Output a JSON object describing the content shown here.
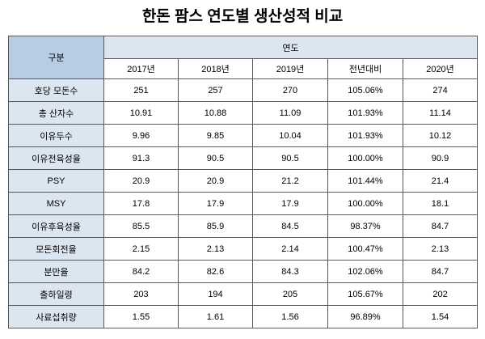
{
  "page_title": "한돈 팜스 연도별 생산성적 비교",
  "chart_data": {
    "type": "table",
    "title": "한돈 팜스 연도별 생산성적 비교",
    "corner_header": "구분",
    "group_header": "연도",
    "column_headers": [
      "2017년",
      "2018년",
      "2019년",
      "전년대비",
      "2020년"
    ],
    "rows": [
      {
        "label": "호당 모돈수",
        "values": [
          "251",
          "257",
          "270",
          "105.06%",
          "274"
        ]
      },
      {
        "label": "총 산자수",
        "values": [
          "10.91",
          "10.88",
          "11.09",
          "101.93%",
          "11.14"
        ]
      },
      {
        "label": "이유두수",
        "values": [
          "9.96",
          "9.85",
          "10.04",
          "101.93%",
          "10.12"
        ]
      },
      {
        "label": "이유전육성율",
        "values": [
          "91.3",
          "90.5",
          "90.5",
          "100.00%",
          "90.9"
        ]
      },
      {
        "label": "PSY",
        "values": [
          "20.9",
          "20.9",
          "21.2",
          "101.44%",
          "21.4"
        ]
      },
      {
        "label": "MSY",
        "values": [
          "17.8",
          "17.9",
          "17.9",
          "100.00%",
          "18.1"
        ]
      },
      {
        "label": "이유후육성율",
        "values": [
          "85.5",
          "85.9",
          "84.5",
          "98.37%",
          "84.7"
        ]
      },
      {
        "label": "모돈회전율",
        "values": [
          "2.15",
          "2.13",
          "2.14",
          "100.47%",
          "2.13"
        ]
      },
      {
        "label": "분만율",
        "values": [
          "84.2",
          "82.6",
          "84.3",
          "102.06%",
          "84.7"
        ]
      },
      {
        "label": "출하일령",
        "values": [
          "203",
          "194",
          "205",
          "105.67%",
          "202"
        ]
      },
      {
        "label": "사료섭취량",
        "values": [
          "1.55",
          "1.61",
          "1.56",
          "96.89%",
          "1.54"
        ]
      }
    ],
    "layout": {
      "grid": true,
      "header_tiers": 2,
      "first_column_is_row_labels": true
    }
  },
  "colors": {
    "corner_header_bg": "#b8cce4",
    "group_header_bg": "#dce6f1",
    "row_label_bg": "#dce6f1",
    "data_cell_bg": "#ffffff",
    "border": "#595959",
    "text": "#000000"
  }
}
